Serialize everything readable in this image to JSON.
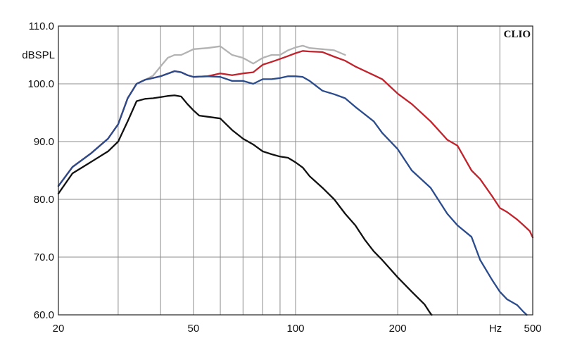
{
  "chart_data": {
    "type": "line",
    "brand": "CLIO",
    "ylabel": "dBSPL",
    "xlabel": "Hz",
    "x_scale": "log",
    "xlim": [
      20,
      500
    ],
    "ylim": [
      60,
      110
    ],
    "grid": true,
    "legend": "none",
    "x_ticks": [
      {
        "value": 20,
        "label": "20"
      },
      {
        "value": 50,
        "label": "50"
      },
      {
        "value": 100,
        "label": "100"
      },
      {
        "value": 200,
        "label": "200"
      },
      {
        "value": 500,
        "label": "500"
      }
    ],
    "y_ticks": [
      {
        "value": 60,
        "label": "60.0"
      },
      {
        "value": 70,
        "label": "70.0"
      },
      {
        "value": 80,
        "label": "80.0"
      },
      {
        "value": 90,
        "label": "90.0"
      },
      {
        "value": 100,
        "label": "100.0"
      },
      {
        "value": 110,
        "label": "110.0"
      }
    ],
    "x_gridlines": [
      20,
      30,
      40,
      50,
      60,
      70,
      80,
      90,
      100,
      200,
      300,
      400,
      500
    ],
    "y_gridlines": [
      60,
      70,
      80,
      90,
      100,
      110
    ],
    "series": [
      {
        "color": "#b3b3b3",
        "points": [
          [
            20,
            82.3
          ],
          [
            22,
            85.6
          ],
          [
            25,
            88
          ],
          [
            28,
            90.5
          ],
          [
            30,
            93
          ],
          [
            32,
            97.5
          ],
          [
            34,
            100
          ],
          [
            36,
            100.7
          ],
          [
            38,
            101.4
          ],
          [
            40,
            103
          ],
          [
            42,
            104.5
          ],
          [
            44,
            105
          ],
          [
            46,
            105
          ],
          [
            48,
            105.5
          ],
          [
            50,
            106
          ],
          [
            55,
            106.2
          ],
          [
            60,
            106.5
          ],
          [
            65,
            105
          ],
          [
            70,
            104.5
          ],
          [
            75,
            103.5
          ],
          [
            80,
            104.5
          ],
          [
            85,
            105
          ],
          [
            90,
            105
          ],
          [
            95,
            105.8
          ],
          [
            100,
            106.3
          ],
          [
            105,
            106.6
          ],
          [
            110,
            106.2
          ],
          [
            120,
            106
          ],
          [
            130,
            105.8
          ],
          [
            140,
            105
          ]
        ]
      },
      {
        "color": "#c0232b",
        "points": [
          [
            20,
            82.3
          ],
          [
            22,
            85.6
          ],
          [
            25,
            88
          ],
          [
            28,
            90.5
          ],
          [
            30,
            93
          ],
          [
            32,
            97.5
          ],
          [
            34,
            100
          ],
          [
            36,
            100.7
          ],
          [
            38,
            101
          ],
          [
            40,
            101.3
          ],
          [
            44,
            102.2
          ],
          [
            46,
            102
          ],
          [
            48,
            101.5
          ],
          [
            50,
            101.2
          ],
          [
            55,
            101.3
          ],
          [
            60,
            101.8
          ],
          [
            65,
            101.5
          ],
          [
            70,
            101.8
          ],
          [
            75,
            102
          ],
          [
            80,
            103.3
          ],
          [
            85,
            103.8
          ],
          [
            90,
            104.3
          ],
          [
            95,
            104.8
          ],
          [
            100,
            105.3
          ],
          [
            105,
            105.7
          ],
          [
            110,
            105.6
          ],
          [
            120,
            105.5
          ],
          [
            130,
            104.7
          ],
          [
            140,
            104
          ],
          [
            150,
            103
          ],
          [
            170,
            101.5
          ],
          [
            180,
            100.8
          ],
          [
            200,
            98.3
          ],
          [
            220,
            96.5
          ],
          [
            250,
            93.5
          ],
          [
            280,
            90.3
          ],
          [
            300,
            89.3
          ],
          [
            330,
            85
          ],
          [
            350,
            83.5
          ],
          [
            380,
            80.5
          ],
          [
            400,
            78.5
          ],
          [
            420,
            77.8
          ],
          [
            450,
            76.5
          ],
          [
            470,
            75.5
          ],
          [
            490,
            74.5
          ],
          [
            500,
            73.4
          ]
        ]
      },
      {
        "color": "#2a4b8c",
        "points": [
          [
            20,
            82.3
          ],
          [
            22,
            85.6
          ],
          [
            25,
            88
          ],
          [
            28,
            90.5
          ],
          [
            30,
            93
          ],
          [
            32,
            97.5
          ],
          [
            34,
            100
          ],
          [
            36,
            100.7
          ],
          [
            38,
            101
          ],
          [
            40,
            101.3
          ],
          [
            44,
            102.2
          ],
          [
            46,
            102
          ],
          [
            48,
            101.5
          ],
          [
            50,
            101.2
          ],
          [
            55,
            101.3
          ],
          [
            60,
            101.2
          ],
          [
            65,
            100.5
          ],
          [
            70,
            100.5
          ],
          [
            75,
            100
          ],
          [
            80,
            100.8
          ],
          [
            85,
            100.8
          ],
          [
            90,
            101
          ],
          [
            95,
            101.3
          ],
          [
            100,
            101.3
          ],
          [
            105,
            101.2
          ],
          [
            110,
            100.5
          ],
          [
            120,
            98.8
          ],
          [
            130,
            98.2
          ],
          [
            140,
            97.5
          ],
          [
            150,
            96
          ],
          [
            170,
            93.5
          ],
          [
            180,
            91.5
          ],
          [
            200,
            88.7
          ],
          [
            220,
            85
          ],
          [
            250,
            82
          ],
          [
            280,
            77.5
          ],
          [
            300,
            75.5
          ],
          [
            330,
            73.5
          ],
          [
            350,
            69.5
          ],
          [
            380,
            66
          ],
          [
            400,
            64
          ],
          [
            420,
            62.7
          ],
          [
            450,
            61.7
          ],
          [
            470,
            60.5
          ],
          [
            480,
            60
          ]
        ]
      },
      {
        "color": "#111111",
        "points": [
          [
            20,
            81
          ],
          [
            22,
            84.5
          ],
          [
            25,
            86.5
          ],
          [
            28,
            88.3
          ],
          [
            30,
            90
          ],
          [
            32,
            93.5
          ],
          [
            34,
            97
          ],
          [
            36,
            97.4
          ],
          [
            38,
            97.5
          ],
          [
            40,
            97.7
          ],
          [
            42,
            97.9
          ],
          [
            44,
            98
          ],
          [
            46,
            97.8
          ],
          [
            48,
            96.5
          ],
          [
            50,
            95.4
          ],
          [
            52,
            94.5
          ],
          [
            55,
            94.3
          ],
          [
            60,
            94
          ],
          [
            65,
            92
          ],
          [
            70,
            90.5
          ],
          [
            75,
            89.5
          ],
          [
            80,
            88.3
          ],
          [
            85,
            87.8
          ],
          [
            90,
            87.4
          ],
          [
            95,
            87.2
          ],
          [
            100,
            86.4
          ],
          [
            105,
            85.5
          ],
          [
            110,
            84
          ],
          [
            120,
            82
          ],
          [
            130,
            80
          ],
          [
            140,
            77.5
          ],
          [
            150,
            75.5
          ],
          [
            160,
            73
          ],
          [
            170,
            71
          ],
          [
            180,
            69.5
          ],
          [
            200,
            66.5
          ],
          [
            220,
            64
          ],
          [
            240,
            61.8
          ],
          [
            250,
            60.2
          ],
          [
            252,
            60
          ]
        ]
      }
    ]
  }
}
